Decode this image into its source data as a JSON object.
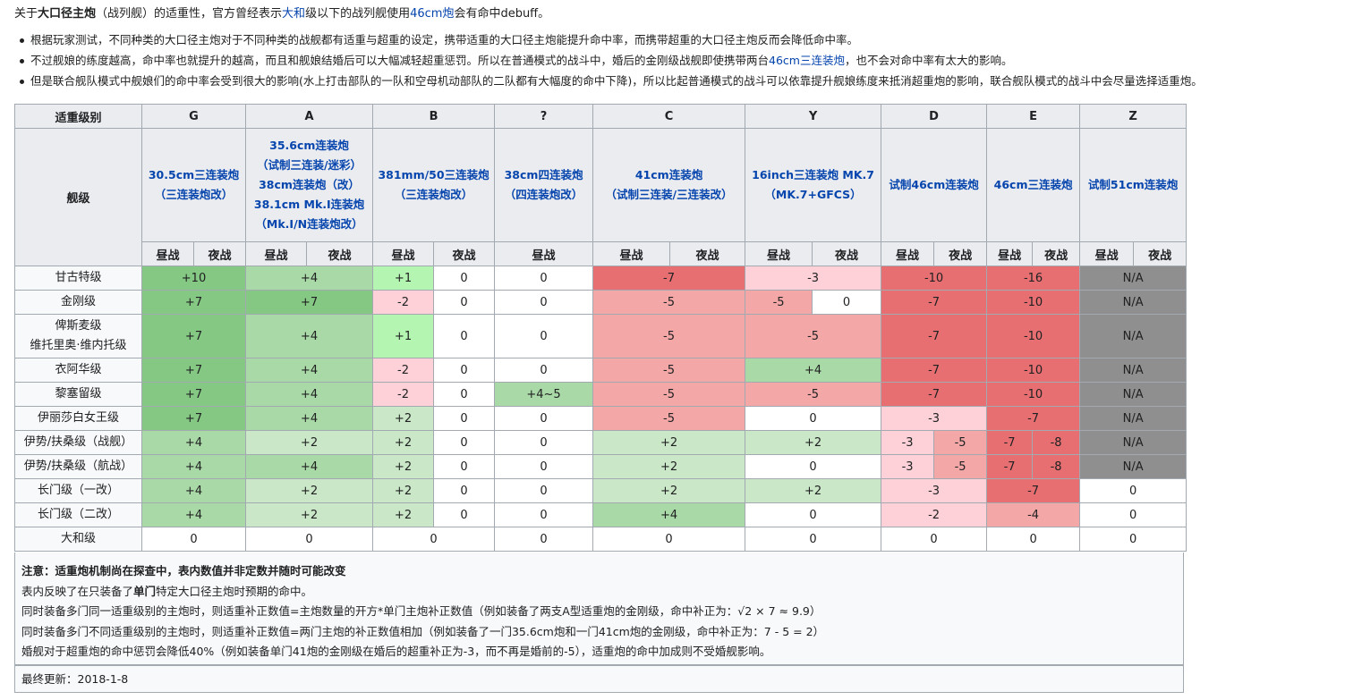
{
  "intro": {
    "prefix": "关于",
    "bold": "大口径主炮",
    "mid1": "（战列舰）的适重性，官方曾经表示",
    "link1": "大和",
    "mid2": "级以下的战列舰使用",
    "link2": "46cm炮",
    "suffix": "会有命中debuff。"
  },
  "bullets": {
    "b1": "根据玩家测试，不同种类的大口径主炮对于不同种类的战舰都有适重与超重的设定，携带适重的大口径主炮能提升命中率，而携带超重的大口径主炮反而会降低命中率。",
    "b2_pre": "不过舰娘的练度越高，命中率也就提升的越高，而且和舰娘结婚后可以大幅减轻超重惩罚。所以在普通模式的战斗中，婚后的金刚级战舰即使携带两台",
    "b2_link": "46cm三连装炮",
    "b2_post": "，也不会对命中率有太大的影响。",
    "b3": "但是联合舰队模式中舰娘们的命中率会受到很大的影响(水上打击部队的一队和空母机动部队的二队都有大幅度的命中下降)，所以比起普通模式的战斗可以依靠提升舰娘练度来抵消超重炮的影响，联合舰队模式的战斗中会尽量选择适重炮。"
  },
  "table": {
    "grade_header": "适重级别",
    "class_header": "舰级",
    "day": "昼战",
    "night": "夜战",
    "grades": [
      "G",
      "A",
      "B",
      "?",
      "C",
      "Y",
      "D",
      "E",
      "Z"
    ],
    "weapons": {
      "g": [
        "30.5cm三连装炮",
        "（三连装炮改）"
      ],
      "a": [
        "35.6cm连装炮",
        "（试制三连装/迷彩）",
        "38cm连装炮（改）",
        "38.1cm Mk.I连装炮",
        "（Mk.I/N连装炮改）"
      ],
      "b": [
        "381mm/50三连装炮",
        "（三连装炮改）"
      ],
      "q": [
        "38cm四连装炮",
        "（四连装炮改）"
      ],
      "c": [
        "41cm连装炮",
        "（试制三连装/三连装改）"
      ],
      "y": [
        "16inch三连装炮 MK.7",
        "（MK.7+GFCS）"
      ],
      "d": [
        "试制46cm连装炮"
      ],
      "e": [
        "46cm三连装炮"
      ],
      "z": [
        "试制51cm连装炮"
      ]
    },
    "rows": [
      {
        "cls": [
          "甘古特级"
        ],
        "c": [
          "+10",
          "+4",
          "+1",
          "0",
          "0",
          "-7",
          "-3",
          "-10",
          "-16",
          "N/A"
        ]
      },
      {
        "cls": [
          "金刚级"
        ],
        "c": [
          "+7",
          "+7",
          "-2",
          "0",
          "0",
          "-5",
          "-5",
          "0",
          "-7",
          "-10",
          "N/A"
        ]
      },
      {
        "cls": [
          "俾斯麦级",
          "维托里奥·维内托级"
        ],
        "c": [
          "+7",
          "+4",
          "+1",
          "0",
          "0",
          "-5",
          "-5",
          "-7",
          "-10",
          "N/A"
        ]
      },
      {
        "cls": [
          "衣阿华级"
        ],
        "c": [
          "+7",
          "+4",
          "-2",
          "0",
          "0",
          "-5",
          "+4",
          "-7",
          "-10",
          "N/A"
        ]
      },
      {
        "cls": [
          "黎塞留级"
        ],
        "c": [
          "+7",
          "+4",
          "-2",
          "0",
          "+4~5",
          "-5",
          "-5",
          "-7",
          "-10",
          "N/A"
        ]
      },
      {
        "cls": [
          "伊丽莎白女王级"
        ],
        "c": [
          "+7",
          "+4",
          "+2",
          "0",
          "0",
          "-5",
          "0",
          "-3",
          "-7",
          "N/A"
        ]
      },
      {
        "cls": [
          "伊势/扶桑级（战舰）"
        ],
        "c": [
          "+4",
          "+2",
          "+2",
          "0",
          "0",
          "+2",
          "+2",
          "-3",
          "-5",
          "-7",
          "-8",
          "N/A"
        ]
      },
      {
        "cls": [
          "伊势/扶桑级（航战）"
        ],
        "c": [
          "+4",
          "+4",
          "+2",
          "0",
          "0",
          "+2",
          "0",
          "-3",
          "-5",
          "-7",
          "-8",
          "N/A"
        ]
      },
      {
        "cls": [
          "长门级（一改）"
        ],
        "c": [
          "+4",
          "+2",
          "+2",
          "0",
          "0",
          "+2",
          "+2",
          "-3",
          "-7",
          "0"
        ]
      },
      {
        "cls": [
          "长门级（二改）"
        ],
        "c": [
          "+4",
          "+2",
          "+2",
          "0",
          "0",
          "+4",
          "0",
          "-2",
          "-4",
          "0"
        ]
      },
      {
        "cls": [
          "大和级"
        ],
        "c": [
          "0",
          "0",
          "0",
          "0",
          "0",
          "0",
          "0",
          "0",
          "0"
        ]
      }
    ]
  },
  "notes": {
    "title": "注意：适重炮机制尚在探查中，表内数值并非定数并随时可能改变",
    "l1_pre": "表内反映了在只装备了",
    "l1_bold": "单门",
    "l1_post": "特定大口径主炮时预期的命中。",
    "l2": "同时装备多门同一适重级别的主炮时，则适重补正数值=主炮数量的开方*单门主炮补正数值（例如装备了两支A型适重炮的金刚级，命中补正为：√2 × 7 ≈ 9.9）",
    "l3": "同时装备多门不同适重级别的主炮时，则适重补正数值=两门主炮的补正数值相加（例如装备了一门35.6cm炮和一门41cm炮的金刚级，命中补正为：7 - 5 = 2）",
    "l4": "婚舰对于超重炮的命中惩罚会降低40%（例如装备单门41炮的金刚级在婚后的超重补正为-3，而不再是婚前的-5），适重炮的命中加成则不受婚舰影响。"
  },
  "footer": {
    "updated": "最终更新：2018-1-8"
  },
  "colors": {
    "dark_green": "#84c883",
    "mid_green": "#a9d9a6",
    "light_green": "#cae8c7",
    "pale_green": "#b5f5b2",
    "light_pink": "#fdd1d7",
    "mid_red": "#f3a7a7",
    "dark_red": "#e86f71",
    "gray": "#8f8f8f"
  }
}
